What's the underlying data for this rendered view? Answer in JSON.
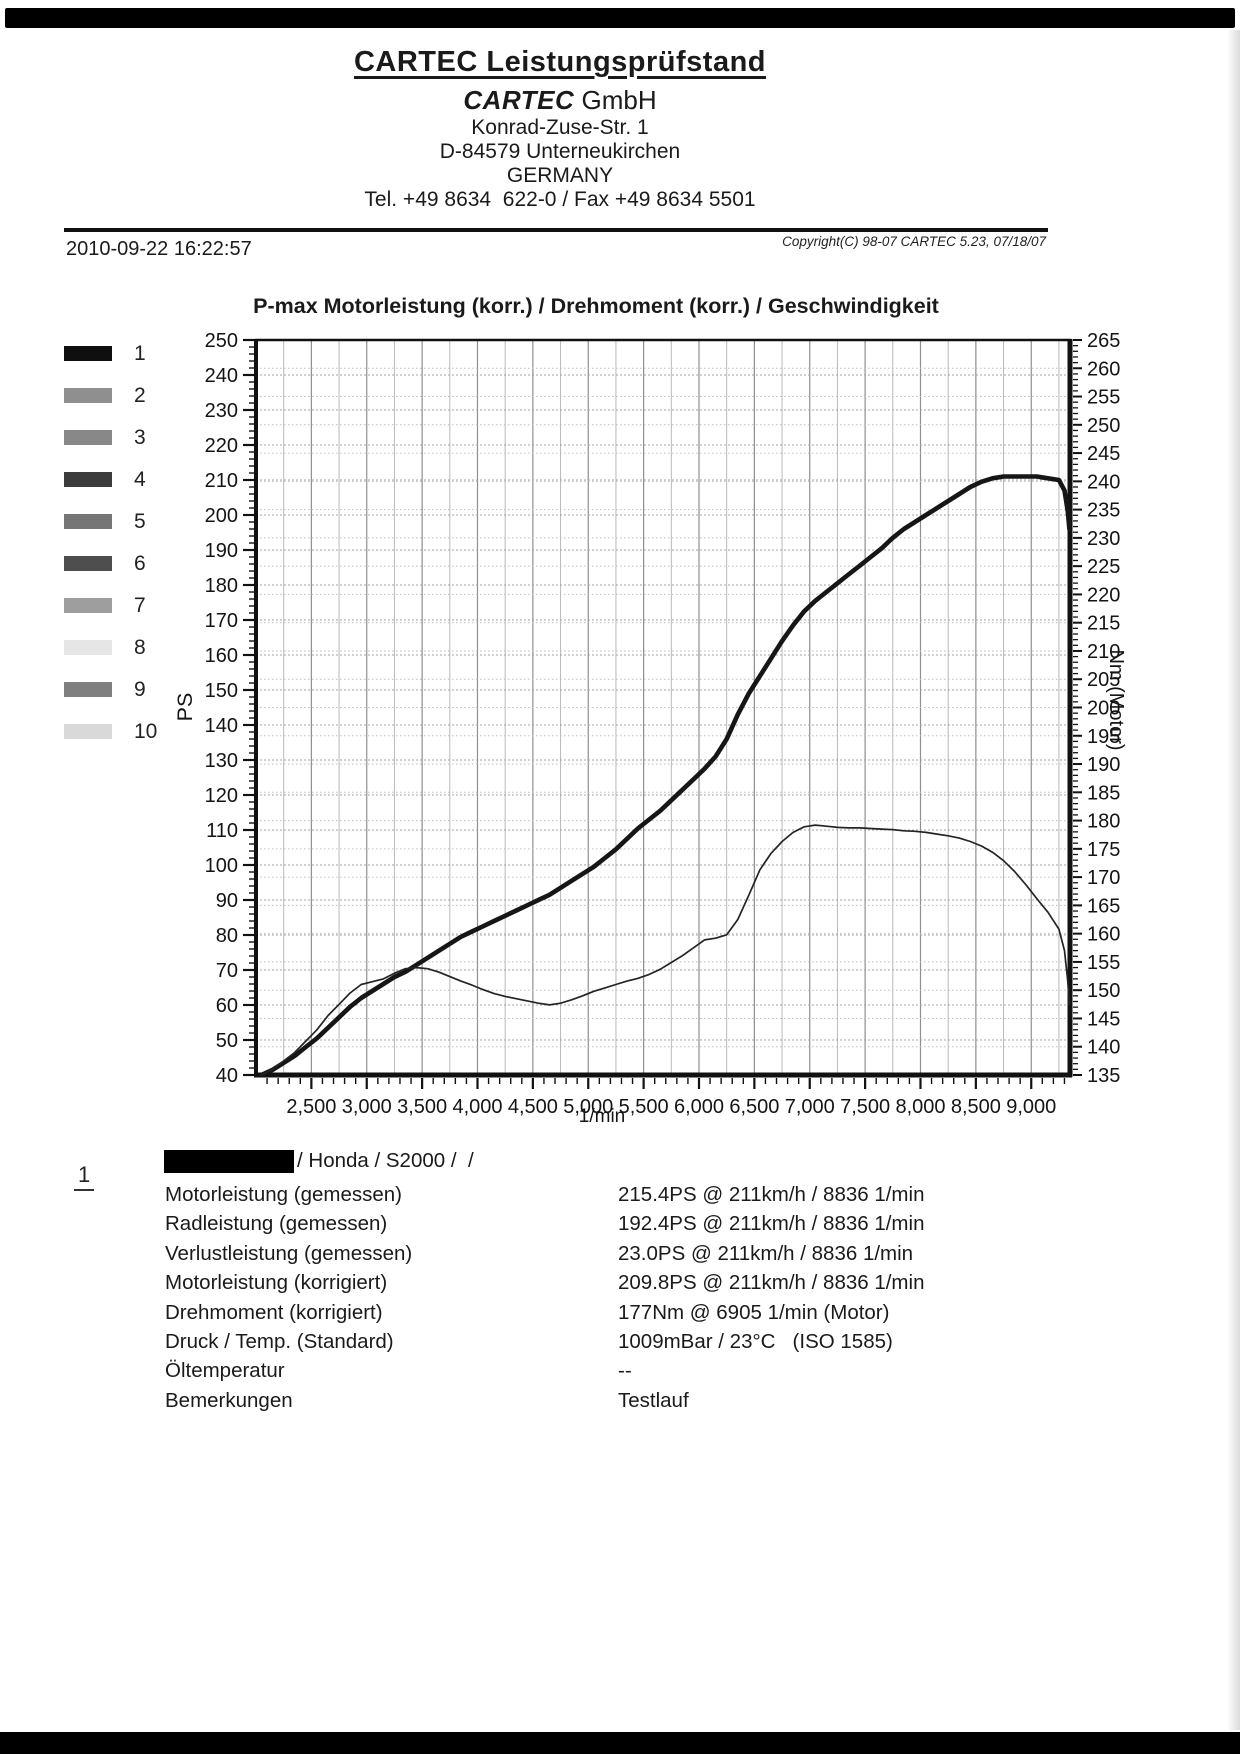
{
  "header": {
    "title": "CARTEC Leistungsprüfstand",
    "company_bold": "CARTEC",
    "company_rest": " GmbH",
    "address1": "Konrad-Zuse-Str. 1",
    "address2": "D-84579 Unterneukirchen",
    "address3": "GERMANY",
    "contact": "Tel. +49 8634  622-0 / Fax +49 8634 5501"
  },
  "meta": {
    "datetime": "2010-09-22 16:22:57",
    "copyright": "Copyright(C) 98-07 CARTEC 5.23, 07/18/07"
  },
  "chart": {
    "title": "P-max Motorleistung (korr.) / Drehmoment (korr.) / Geschwindigkeit",
    "legend": [
      {
        "label": "1",
        "color": "#0f0f0f"
      },
      {
        "label": "2",
        "color": "#8f8f8f"
      },
      {
        "label": "3",
        "color": "#888888"
      },
      {
        "label": "4",
        "color": "#3c3c3c"
      },
      {
        "label": "5",
        "color": "#767676"
      },
      {
        "label": "6",
        "color": "#4e4e4e"
      },
      {
        "label": "7",
        "color": "#9e9e9e"
      },
      {
        "label": "8",
        "color": "#e6e6e6"
      },
      {
        "label": "9",
        "color": "#7f7f7f"
      },
      {
        "label": "10",
        "color": "#d9d9d9"
      }
    ]
  },
  "chart_data": {
    "type": "line",
    "title": "P-max Motorleistung (korr.) / Drehmoment (korr.) / Geschwindigkeit",
    "xlabel": "1/min",
    "ylabel_left": "PS",
    "ylabel_right": "Nm (Motor)",
    "xlim": [
      2000,
      9350
    ],
    "ylim_left": [
      40,
      250
    ],
    "ylim_right": [
      135,
      265
    ],
    "grid": true,
    "x_tick_values": [
      2500,
      3000,
      3500,
      4000,
      4500,
      5000,
      5500,
      6000,
      6500,
      7000,
      7500,
      8000,
      8500,
      9000
    ],
    "x_tick_labels": [
      "2,500",
      "3,000",
      "3,500",
      "4,000",
      "4,500",
      "5,000",
      "5,500",
      "6,000",
      "6,500",
      "7,000",
      "7,500",
      "8,000",
      "8,500",
      "9,000"
    ],
    "y_ticks_left": [
      40,
      50,
      60,
      70,
      80,
      90,
      100,
      110,
      120,
      130,
      140,
      150,
      160,
      170,
      180,
      190,
      200,
      210,
      220,
      230,
      240,
      250
    ],
    "y_ticks_right": [
      135,
      140,
      145,
      150,
      155,
      160,
      165,
      170,
      175,
      180,
      185,
      190,
      195,
      200,
      205,
      210,
      215,
      220,
      225,
      230,
      235,
      240,
      245,
      250,
      255,
      260,
      265
    ],
    "layout": {
      "x_grid_step": 250,
      "x_minor_tick_step": 100,
      "y_left_minor_tick_step": 2,
      "y_right_minor_tick_step": 1
    },
    "series": [
      {
        "name": "Motorleistung (korr.)",
        "axis": "left",
        "unit": "PS",
        "style": "thick",
        "color": "#161616",
        "points": [
          [
            2050,
            40
          ],
          [
            2150,
            41.5
          ],
          [
            2250,
            43.5
          ],
          [
            2350,
            45.5
          ],
          [
            2450,
            48
          ],
          [
            2550,
            50.5
          ],
          [
            2650,
            53.5
          ],
          [
            2750,
            56.5
          ],
          [
            2850,
            59.5
          ],
          [
            2950,
            62
          ],
          [
            3050,
            64
          ],
          [
            3150,
            66
          ],
          [
            3250,
            68
          ],
          [
            3350,
            69.5
          ],
          [
            3450,
            71.5
          ],
          [
            3550,
            73.5
          ],
          [
            3650,
            75.5
          ],
          [
            3750,
            77.5
          ],
          [
            3850,
            79.5
          ],
          [
            3950,
            81
          ],
          [
            4050,
            82.5
          ],
          [
            4150,
            84
          ],
          [
            4250,
            85.5
          ],
          [
            4350,
            87
          ],
          [
            4450,
            88.5
          ],
          [
            4550,
            90
          ],
          [
            4650,
            91.5
          ],
          [
            4750,
            93.5
          ],
          [
            4850,
            95.5
          ],
          [
            4950,
            97.5
          ],
          [
            5050,
            99.5
          ],
          [
            5150,
            102
          ],
          [
            5250,
            104.5
          ],
          [
            5350,
            107.5
          ],
          [
            5450,
            110.5
          ],
          [
            5550,
            113
          ],
          [
            5650,
            115.5
          ],
          [
            5750,
            118.5
          ],
          [
            5850,
            121.5
          ],
          [
            5950,
            124.5
          ],
          [
            6050,
            127.5
          ],
          [
            6150,
            131
          ],
          [
            6250,
            136
          ],
          [
            6350,
            143
          ],
          [
            6450,
            149
          ],
          [
            6550,
            154
          ],
          [
            6650,
            159
          ],
          [
            6750,
            164
          ],
          [
            6850,
            168.5
          ],
          [
            6950,
            172.5
          ],
          [
            7050,
            175.5
          ],
          [
            7150,
            178
          ],
          [
            7250,
            180.5
          ],
          [
            7350,
            183
          ],
          [
            7450,
            185.5
          ],
          [
            7550,
            188
          ],
          [
            7650,
            190.5
          ],
          [
            7750,
            193.5
          ],
          [
            7850,
            196
          ],
          [
            7950,
            198
          ],
          [
            8050,
            200
          ],
          [
            8150,
            202
          ],
          [
            8250,
            204
          ],
          [
            8350,
            206
          ],
          [
            8450,
            208
          ],
          [
            8550,
            209.5
          ],
          [
            8650,
            210.5
          ],
          [
            8750,
            211
          ],
          [
            8850,
            211
          ],
          [
            8950,
            211
          ],
          [
            9050,
            211
          ],
          [
            9150,
            210.5
          ],
          [
            9250,
            210
          ],
          [
            9300,
            207
          ],
          [
            9330,
            201
          ],
          [
            9345,
            196
          ]
        ]
      },
      {
        "name": "Drehmoment (korr.)",
        "axis": "right",
        "unit": "Nm",
        "style": "thin",
        "color": "#242424",
        "points": [
          [
            2050,
            135
          ],
          [
            2150,
            136
          ],
          [
            2250,
            137.5
          ],
          [
            2350,
            139
          ],
          [
            2450,
            141
          ],
          [
            2550,
            143
          ],
          [
            2650,
            145.5
          ],
          [
            2750,
            147.5
          ],
          [
            2850,
            149.5
          ],
          [
            2950,
            151
          ],
          [
            3050,
            151.5
          ],
          [
            3150,
            152
          ],
          [
            3250,
            153
          ],
          [
            3350,
            153.8
          ],
          [
            3450,
            154
          ],
          [
            3550,
            153.8
          ],
          [
            3650,
            153.2
          ],
          [
            3750,
            152.4
          ],
          [
            3850,
            151.6
          ],
          [
            3950,
            150.9
          ],
          [
            4050,
            150.1
          ],
          [
            4150,
            149.4
          ],
          [
            4250,
            148.9
          ],
          [
            4350,
            148.5
          ],
          [
            4450,
            148.1
          ],
          [
            4550,
            147.7
          ],
          [
            4650,
            147.4
          ],
          [
            4750,
            147.7
          ],
          [
            4850,
            148.3
          ],
          [
            4950,
            149
          ],
          [
            5050,
            149.8
          ],
          [
            5150,
            150.4
          ],
          [
            5250,
            151
          ],
          [
            5350,
            151.6
          ],
          [
            5450,
            152.1
          ],
          [
            5550,
            152.8
          ],
          [
            5650,
            153.7
          ],
          [
            5750,
            154.9
          ],
          [
            5850,
            156.1
          ],
          [
            5950,
            157.5
          ],
          [
            6050,
            158.9
          ],
          [
            6150,
            159.2
          ],
          [
            6250,
            159.8
          ],
          [
            6350,
            162.5
          ],
          [
            6450,
            166.8
          ],
          [
            6550,
            171.3
          ],
          [
            6650,
            174.2
          ],
          [
            6750,
            176.3
          ],
          [
            6850,
            177.9
          ],
          [
            6950,
            178.9
          ],
          [
            7050,
            179.2
          ],
          [
            7150,
            179
          ],
          [
            7250,
            178.8
          ],
          [
            7350,
            178.7
          ],
          [
            7450,
            178.7
          ],
          [
            7550,
            178.6
          ],
          [
            7650,
            178.5
          ],
          [
            7750,
            178.4
          ],
          [
            7850,
            178.2
          ],
          [
            7950,
            178.1
          ],
          [
            8050,
            177.9
          ],
          [
            8150,
            177.6
          ],
          [
            8250,
            177.3
          ],
          [
            8350,
            176.9
          ],
          [
            8450,
            176.3
          ],
          [
            8550,
            175.5
          ],
          [
            8650,
            174.4
          ],
          [
            8750,
            172.9
          ],
          [
            8850,
            171
          ],
          [
            8950,
            168.7
          ],
          [
            9050,
            166.2
          ],
          [
            9150,
            163.8
          ],
          [
            9250,
            160.8
          ],
          [
            9300,
            157
          ],
          [
            9330,
            151.5
          ],
          [
            9345,
            147.5
          ]
        ]
      }
    ]
  },
  "results": {
    "run_number": "1",
    "vehicle_line": "/ Honda / S2000 /  /",
    "rows": [
      {
        "label": "Motorleistung (gemessen)",
        "value": "215.4PS @ 211km/h / 8836 1/min"
      },
      {
        "label": "Radleistung (gemessen)",
        "value": "192.4PS @ 211km/h / 8836 1/min"
      },
      {
        "label": "Verlustleistung (gemessen)",
        "value": "23.0PS @ 211km/h / 8836 1/min"
      },
      {
        "label": "Motorleistung (korrigiert)",
        "value": "209.8PS @ 211km/h / 8836 1/min"
      },
      {
        "label": "Drehmoment (korrigiert)",
        "value": "177Nm @ 6905 1/min (Motor)"
      },
      {
        "label": "Druck / Temp. (Standard)",
        "value": "1009mBar / 23°C   (ISO 1585)"
      },
      {
        "label": "Öltemperatur",
        "value": "--"
      },
      {
        "label": "Bemerkungen",
        "value": "Testlauf"
      }
    ]
  }
}
